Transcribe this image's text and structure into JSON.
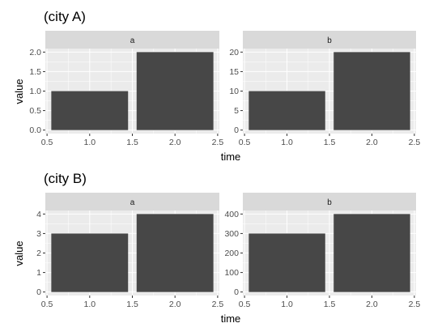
{
  "chart_data": [
    {
      "type": "bar",
      "title": "(city A)",
      "xlabel": "time",
      "ylabel": "value",
      "grid": true,
      "panels": [
        {
          "strip": "a",
          "x": [
            1,
            2
          ],
          "values": [
            1,
            2
          ],
          "xlim": [
            0.5,
            2.5
          ],
          "ylim": [
            0,
            2.0
          ],
          "xticks": [
            "0.5",
            "1.0",
            "1.5",
            "2.0",
            "2.5"
          ],
          "yticks": [
            "0.0",
            "0.5",
            "1.0",
            "1.5",
            "2.0"
          ]
        },
        {
          "strip": "b",
          "x": [
            1,
            2
          ],
          "values": [
            10,
            20
          ],
          "xlim": [
            0.5,
            2.5
          ],
          "ylim": [
            0,
            20
          ],
          "xticks": [
            "0.5",
            "1.0",
            "1.5",
            "2.0",
            "2.5"
          ],
          "yticks": [
            "0",
            "5",
            "10",
            "15",
            "20"
          ]
        }
      ]
    },
    {
      "type": "bar",
      "title": "(city B)",
      "xlabel": "time",
      "ylabel": "value",
      "grid": true,
      "panels": [
        {
          "strip": "a",
          "x": [
            1,
            2
          ],
          "values": [
            3,
            4
          ],
          "xlim": [
            0.5,
            2.5
          ],
          "ylim": [
            0,
            4
          ],
          "xticks": [
            "0.5",
            "1.0",
            "1.5",
            "2.0",
            "2.5"
          ],
          "yticks": [
            "0",
            "1",
            "2",
            "3",
            "4"
          ]
        },
        {
          "strip": "b",
          "x": [
            1,
            2
          ],
          "values": [
            300,
            400
          ],
          "xlim": [
            0.5,
            2.5
          ],
          "ylim": [
            0,
            400
          ],
          "xticks": [
            "0.5",
            "1.0",
            "1.5",
            "2.0",
            "2.5"
          ],
          "yticks": [
            "0",
            "100",
            "200",
            "300",
            "400"
          ]
        }
      ]
    }
  ],
  "colors": {
    "bar_fill": "#474747",
    "panel_background": "#ebebeb",
    "strip_background": "#d9d9d9",
    "grid_major": "#ffffff",
    "tick_color": "#333333"
  }
}
